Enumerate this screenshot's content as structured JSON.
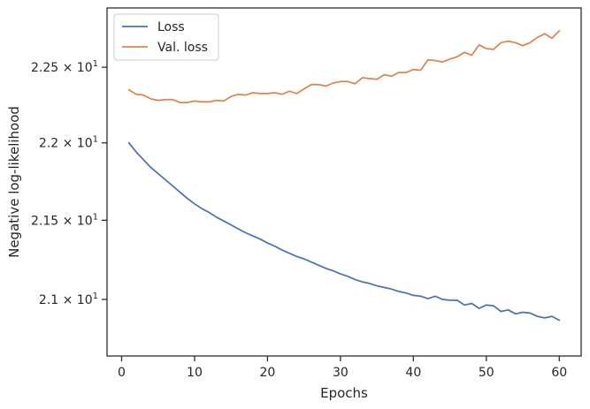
{
  "chart_data": {
    "type": "line",
    "xlabel": "Epochs",
    "ylabel": "Negative log-likelihood",
    "xlim": [
      -2,
      63
    ],
    "ylim": [
      20.65,
      22.9
    ],
    "yscale": "log",
    "grid": false,
    "legend_position": "top-left",
    "xticks": [
      0,
      10,
      20,
      30,
      40,
      50,
      60
    ],
    "xtick_labels": [
      "0",
      "10",
      "20",
      "30",
      "40",
      "50",
      "60"
    ],
    "yticks": [
      21.0,
      21.5,
      22.0,
      22.5
    ],
    "ytick_labels": [
      {
        "base": "2.1",
        "exp": "1"
      },
      {
        "base": "2.15",
        "exp": "1"
      },
      {
        "base": "2.2",
        "exp": "1"
      },
      {
        "base": "2.25",
        "exp": "1"
      }
    ],
    "x": [
      1,
      2,
      3,
      4,
      5,
      6,
      7,
      8,
      9,
      10,
      11,
      12,
      13,
      14,
      15,
      16,
      17,
      18,
      19,
      20,
      21,
      22,
      23,
      24,
      25,
      26,
      27,
      28,
      29,
      30,
      31,
      32,
      33,
      34,
      35,
      36,
      37,
      38,
      39,
      40,
      41,
      42,
      43,
      44,
      45,
      46,
      47,
      48,
      49,
      50,
      51,
      52,
      53,
      54,
      55,
      56,
      57,
      58,
      59,
      60
    ],
    "series": [
      {
        "name": "Loss",
        "color": "#4c72b0",
        "values": [
          22.0,
          21.94,
          21.89,
          21.84,
          21.8,
          21.76,
          21.72,
          21.68,
          21.64,
          21.605,
          21.575,
          21.55,
          21.52,
          21.495,
          21.47,
          21.445,
          21.42,
          21.4,
          21.38,
          21.355,
          21.335,
          21.31,
          21.29,
          21.27,
          21.255,
          21.235,
          21.215,
          21.195,
          21.18,
          21.16,
          21.145,
          21.125,
          21.11,
          21.1,
          21.085,
          21.075,
          21.065,
          21.05,
          21.04,
          21.025,
          21.02,
          21.005,
          21.02,
          21.0,
          20.995,
          20.995,
          20.965,
          20.975,
          20.945,
          20.965,
          20.96,
          20.925,
          20.935,
          20.91,
          20.92,
          20.915,
          20.895,
          20.885,
          20.895,
          20.87
        ]
      },
      {
        "name": "Val. loss",
        "color": "#dd8452",
        "values": [
          22.35,
          22.32,
          22.315,
          22.29,
          22.28,
          22.285,
          22.285,
          22.265,
          22.265,
          22.275,
          22.27,
          22.27,
          22.28,
          22.275,
          22.305,
          22.32,
          22.315,
          22.33,
          22.325,
          22.325,
          22.33,
          22.32,
          22.34,
          22.325,
          22.355,
          22.385,
          22.385,
          22.375,
          22.395,
          22.405,
          22.405,
          22.39,
          22.43,
          22.425,
          22.42,
          22.45,
          22.44,
          22.465,
          22.465,
          22.485,
          22.48,
          22.55,
          22.545,
          22.535,
          22.555,
          22.57,
          22.6,
          22.58,
          22.65,
          22.625,
          22.62,
          22.665,
          22.675,
          22.665,
          22.645,
          22.665,
          22.7,
          22.725,
          22.695,
          22.745
        ]
      }
    ]
  }
}
